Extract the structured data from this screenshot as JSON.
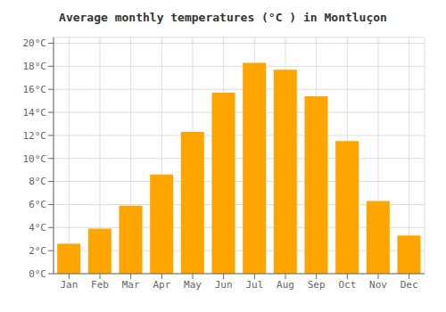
{
  "chart_data": {
    "type": "bar",
    "title": "Average monthly temperatures (°C ) in Montluçon",
    "categories": [
      "Jan",
      "Feb",
      "Mar",
      "Apr",
      "May",
      "Jun",
      "Jul",
      "Aug",
      "Sep",
      "Oct",
      "Nov",
      "Dec"
    ],
    "values": [
      2.6,
      3.9,
      5.9,
      8.6,
      12.3,
      15.7,
      18.3,
      17.7,
      15.4,
      11.5,
      6.3,
      3.3
    ],
    "color": "#FFA500",
    "ylim": [
      0,
      20.5
    ],
    "yticks": [
      {
        "value": 0,
        "label": "0°C"
      },
      {
        "value": 2,
        "label": "2°C"
      },
      {
        "value": 4,
        "label": "4°C"
      },
      {
        "value": 6,
        "label": "6°C"
      },
      {
        "value": 8,
        "label": "8°C"
      },
      {
        "value": 10,
        "label": "10°C"
      },
      {
        "value": 12,
        "label": "12°C"
      },
      {
        "value": 14,
        "label": "14°C"
      },
      {
        "value": 16,
        "label": "16°C"
      },
      {
        "value": 18,
        "label": "18°C"
      },
      {
        "value": 20,
        "label": "20°C"
      }
    ],
    "grid": true
  }
}
